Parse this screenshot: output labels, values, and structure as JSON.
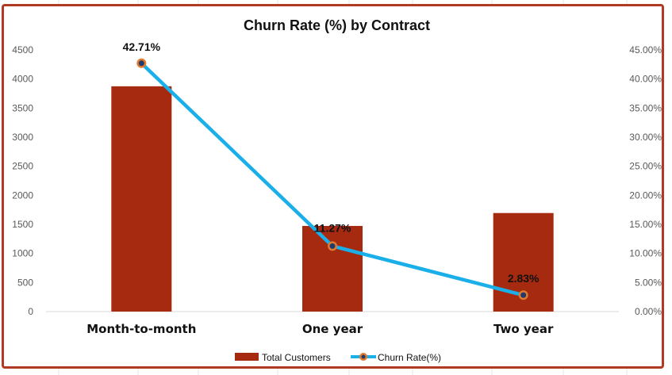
{
  "chart_data": {
    "type": "bar",
    "title": "Churn Rate (%) by Contract",
    "categories": [
      "Month-to-month",
      "One year",
      "Two year"
    ],
    "series": [
      {
        "name": "Total Customers",
        "type": "bar",
        "axis": "left",
        "values": [
          3875,
          1473,
          1695
        ],
        "color": "#A52A0F"
      },
      {
        "name": "Churn Rate(%)",
        "type": "line",
        "axis": "right",
        "values": [
          42.71,
          11.27,
          2.83
        ],
        "labels": [
          "42.71%",
          "11.27%",
          "2.83%"
        ],
        "color": "#1AAFE8",
        "marker_fill": "#1F3A6B",
        "marker_edge": "#E07A2E"
      }
    ],
    "y_left": {
      "min": 0,
      "max": 4500,
      "ticks": [
        "0",
        "500",
        "1000",
        "1500",
        "2000",
        "2500",
        "3000",
        "3500",
        "4000",
        "4500"
      ]
    },
    "y_right": {
      "min": 0,
      "max": 45,
      "ticks": [
        "0.00%",
        "5.00%",
        "10.00%",
        "15.00%",
        "20.00%",
        "25.00%",
        "30.00%",
        "35.00%",
        "40.00%",
        "45.00%"
      ]
    },
    "grid": false,
    "legend_position": "bottom",
    "frame_color": "#B03A22"
  }
}
